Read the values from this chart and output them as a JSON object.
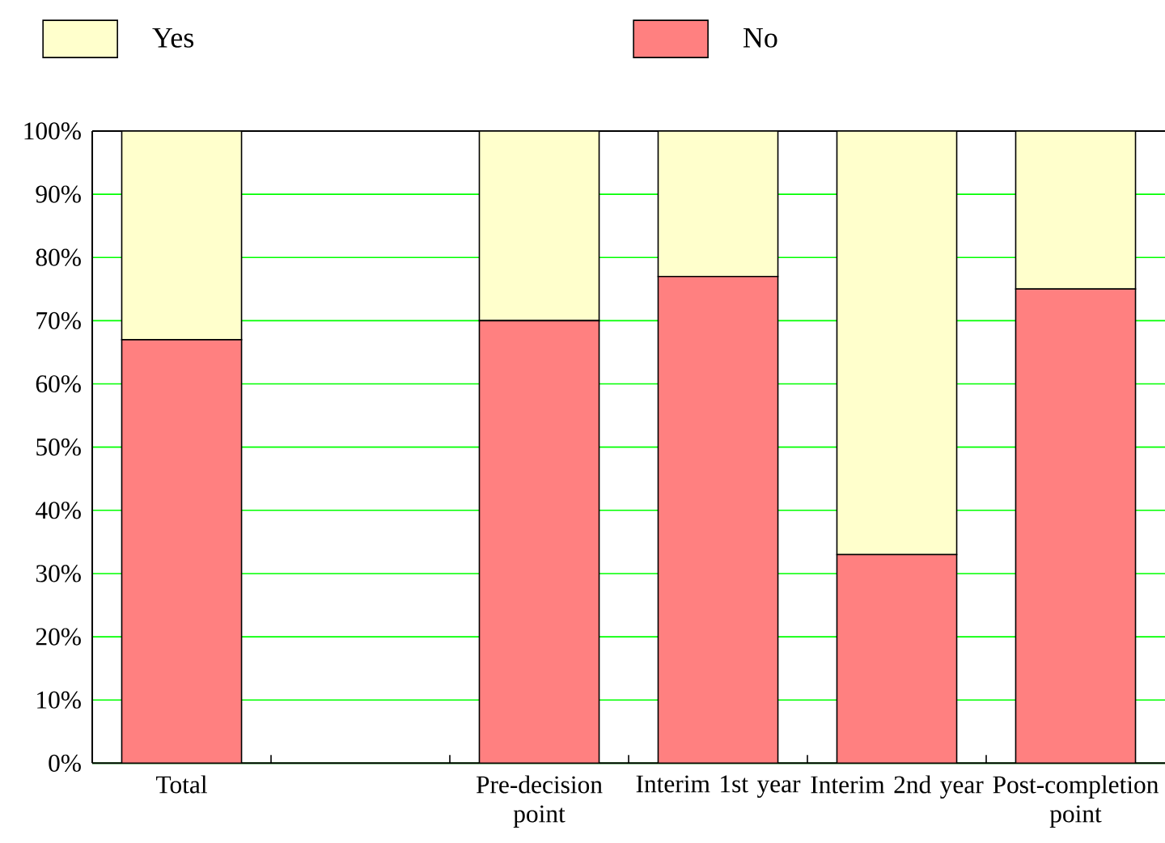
{
  "chart_data": {
    "type": "bar",
    "stacked": true,
    "categories": [
      "Total",
      null,
      "Pre-decision point",
      "Interim 1st year",
      "Interim 2nd year",
      "Post-completion point"
    ],
    "series": [
      {
        "name": "No",
        "color": "#ff8080",
        "values": [
          67,
          null,
          70,
          77,
          33,
          75
        ]
      },
      {
        "name": "Yes",
        "color": "#ffffcc",
        "values": [
          33,
          null,
          30,
          23,
          67,
          25
        ]
      }
    ],
    "ylim": [
      0,
      100
    ],
    "yticks": [
      {
        "value": 0,
        "label": "0%"
      },
      {
        "value": 10,
        "label": "10%"
      },
      {
        "value": 20,
        "label": "20%"
      },
      {
        "value": 30,
        "label": "30%"
      },
      {
        "value": 40,
        "label": "40%"
      },
      {
        "value": 50,
        "label": "50%"
      },
      {
        "value": 60,
        "label": "60%"
      },
      {
        "value": 70,
        "label": "70%"
      },
      {
        "value": 80,
        "label": "80%"
      },
      {
        "value": 90,
        "label": "90%"
      },
      {
        "value": 100,
        "label": "100%"
      }
    ],
    "grid": "y",
    "legend": "top"
  }
}
